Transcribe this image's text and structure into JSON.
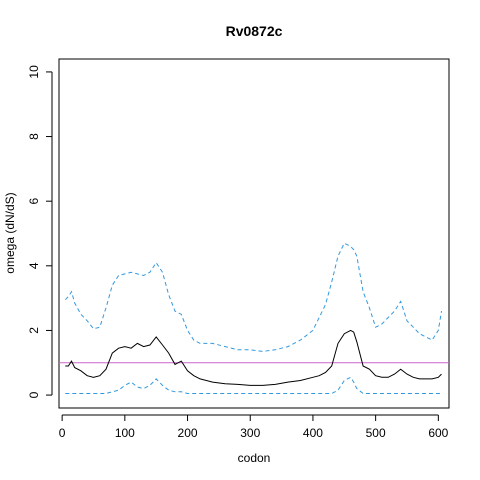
{
  "chart_data": {
    "type": "line",
    "title": "Rv0872c",
    "xlabel": "codon",
    "ylabel": "omega (dN/dS)",
    "xlim": [
      -5,
      617
    ],
    "ylim": [
      -0.4,
      10.4
    ],
    "x_ticks": [
      0,
      100,
      200,
      300,
      400,
      500,
      600
    ],
    "y_ticks": [
      0,
      2,
      4,
      6,
      8,
      10
    ],
    "grid": false,
    "reference_line": {
      "y": 1,
      "color": "#cc66cc"
    },
    "series": [
      {
        "role": "estimate",
        "color": "#000000",
        "dash": "solid",
        "x": [
          5,
          10,
          15,
          20,
          30,
          40,
          50,
          60,
          70,
          80,
          90,
          100,
          110,
          120,
          130,
          140,
          150,
          160,
          170,
          180,
          190,
          200,
          210,
          220,
          240,
          260,
          280,
          300,
          320,
          340,
          360,
          380,
          400,
          410,
          420,
          430,
          440,
          450,
          460,
          465,
          470,
          480,
          490,
          500,
          510,
          520,
          530,
          540,
          550,
          560,
          570,
          580,
          590,
          600,
          605
        ],
        "y": [
          0.9,
          0.9,
          1.05,
          0.85,
          0.75,
          0.6,
          0.55,
          0.6,
          0.8,
          1.3,
          1.45,
          1.5,
          1.45,
          1.6,
          1.5,
          1.55,
          1.8,
          1.55,
          1.3,
          0.95,
          1.05,
          0.75,
          0.6,
          0.5,
          0.4,
          0.35,
          0.33,
          0.3,
          0.3,
          0.33,
          0.4,
          0.45,
          0.55,
          0.6,
          0.7,
          0.9,
          1.6,
          1.9,
          2.0,
          1.95,
          1.65,
          0.9,
          0.8,
          0.6,
          0.55,
          0.55,
          0.65,
          0.8,
          0.65,
          0.55,
          0.5,
          0.5,
          0.5,
          0.55,
          0.65
        ]
      },
      {
        "role": "upper bound",
        "color": "#3399dd",
        "dash": "dashed",
        "x": [
          5,
          10,
          15,
          20,
          30,
          40,
          50,
          60,
          70,
          80,
          90,
          100,
          110,
          120,
          130,
          140,
          150,
          160,
          170,
          180,
          190,
          200,
          210,
          220,
          240,
          260,
          280,
          300,
          320,
          340,
          360,
          380,
          400,
          410,
          420,
          430,
          440,
          450,
          460,
          465,
          470,
          480,
          490,
          500,
          510,
          520,
          530,
          540,
          550,
          560,
          570,
          580,
          590,
          600,
          605
        ],
        "y": [
          2.95,
          3.05,
          3.2,
          2.85,
          2.5,
          2.3,
          2.05,
          2.1,
          2.7,
          3.4,
          3.7,
          3.75,
          3.8,
          3.75,
          3.7,
          3.8,
          4.1,
          3.8,
          3.1,
          2.6,
          2.5,
          2.0,
          1.7,
          1.6,
          1.6,
          1.5,
          1.4,
          1.4,
          1.35,
          1.4,
          1.5,
          1.7,
          2.0,
          2.4,
          2.8,
          3.5,
          4.3,
          4.7,
          4.6,
          4.5,
          4.3,
          3.2,
          2.7,
          2.1,
          2.2,
          2.4,
          2.6,
          2.9,
          2.3,
          2.1,
          1.9,
          1.8,
          1.7,
          2.0,
          2.6
        ]
      },
      {
        "role": "lower bound",
        "color": "#3399dd",
        "dash": "dashed",
        "x": [
          5,
          10,
          15,
          20,
          30,
          40,
          50,
          60,
          70,
          80,
          90,
          100,
          110,
          120,
          130,
          140,
          150,
          160,
          170,
          180,
          190,
          200,
          210,
          220,
          240,
          260,
          280,
          300,
          320,
          340,
          360,
          380,
          400,
          410,
          420,
          430,
          440,
          450,
          460,
          465,
          470,
          480,
          490,
          500,
          510,
          520,
          530,
          540,
          550,
          560,
          570,
          580,
          590,
          600,
          605
        ],
        "y": [
          0.05,
          0.05,
          0.05,
          0.05,
          0.05,
          0.05,
          0.05,
          0.05,
          0.05,
          0.1,
          0.15,
          0.3,
          0.4,
          0.25,
          0.2,
          0.3,
          0.5,
          0.3,
          0.15,
          0.1,
          0.1,
          0.05,
          0.05,
          0.05,
          0.05,
          0.05,
          0.05,
          0.05,
          0.05,
          0.05,
          0.05,
          0.05,
          0.05,
          0.05,
          0.05,
          0.05,
          0.15,
          0.45,
          0.55,
          0.4,
          0.2,
          0.05,
          0.05,
          0.05,
          0.05,
          0.05,
          0.05,
          0.05,
          0.05,
          0.05,
          0.05,
          0.05,
          0.05,
          0.05,
          0.05
        ]
      }
    ]
  }
}
